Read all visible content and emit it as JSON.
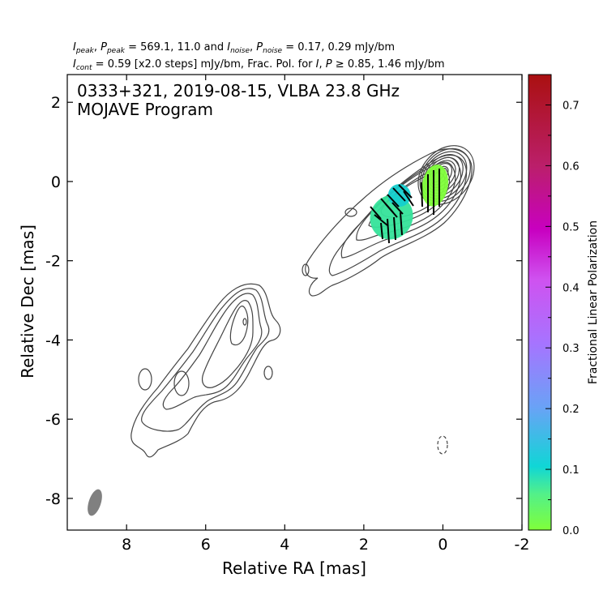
{
  "header": {
    "line1": {
      "I_label": "I",
      "I_sub": "peak",
      "P_label": "P",
      "P_sub": "peak",
      "peak_values": "= 569.1, 11.0 and ",
      "In_label": "I",
      "In_sub": "noise",
      "Pn_label": "P",
      "Pn_sub": "noise",
      "noise_values": "= 0.17, 0.29 mJy/bm"
    },
    "line2": {
      "Ic_label": "I",
      "Ic_sub": "cont",
      "cont_values": "= 0.59 [x2.0 steps] mJy/bm, Frac. Pol. for ",
      "I_label": "I",
      "P_label": "P",
      "geq": "≥",
      "tail": "0.85, 1.46 mJy/bm"
    }
  },
  "chart_data": {
    "type": "contour",
    "title": "0333+321, 2019-08-15, VLBA 23.8 GHz",
    "subtitle": "MOJAVE Program",
    "xlabel": "Relative RA [mas]",
    "ylabel": "Relative Dec [mas]",
    "xlim": [
      9.5,
      -2.0
    ],
    "ylim": [
      -8.8,
      2.7
    ],
    "x_ticks": [
      8,
      6,
      4,
      2,
      0,
      -2
    ],
    "y_ticks": [
      2,
      0,
      -2,
      -4,
      -6,
      -8
    ],
    "contour_base_mJy_per_beam": 0.59,
    "contour_step_factor": 2.0,
    "core": {
      "ra": 0.0,
      "dec": 0.0
    },
    "beam": {
      "ra": 8.9,
      "dec": -8.2,
      "major_mas": 0.7,
      "minor_mas": 0.3,
      "pa_deg": -15
    },
    "negative_contour": {
      "ra": 0.0,
      "dec": -6.7
    },
    "polarization_regions": [
      {
        "ra": 0.2,
        "dec": -0.1,
        "frac_pol": 0.03
      },
      {
        "ra": 1.3,
        "dec": -0.9,
        "frac_pol": 0.08
      },
      {
        "ra": 1.1,
        "dec": -0.35,
        "frac_pol": 0.11
      }
    ],
    "colorbar": {
      "label": "Fractional Linear Polarization",
      "min": 0.0,
      "max": 0.75,
      "tick_labels": [
        "0.7",
        "0.6",
        "0.5",
        "0.4",
        "0.3",
        "0.2",
        "0.1",
        "0.0"
      ],
      "tick_values": [
        0.7,
        0.6,
        0.5,
        0.4,
        0.3,
        0.2,
        0.1,
        0.0
      ],
      "colors": [
        "#7fff3a",
        "#3fe6a0",
        "#10d6d6",
        "#42b3e8",
        "#7f9aff",
        "#a674ff",
        "#d050e8",
        "#c800c0",
        "#b5106a",
        "#aa1010"
      ]
    }
  }
}
